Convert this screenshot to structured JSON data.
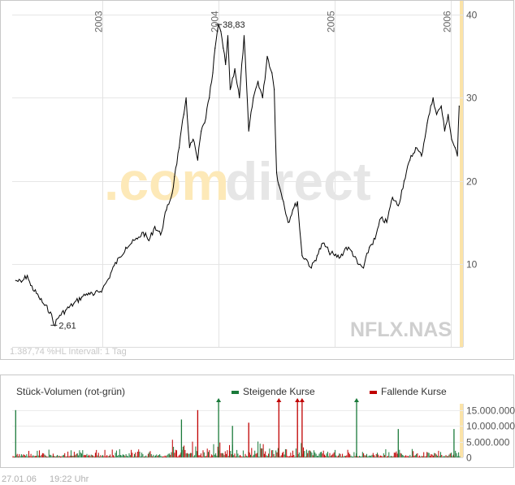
{
  "chart_data": [
    {
      "type": "line",
      "symbol": "NFLX.NAS",
      "watermark": [
        ".com",
        "direct"
      ],
      "x_year_labels": [
        "2003",
        "2004",
        "2005",
        "2006"
      ],
      "yticks": [
        10,
        20,
        30,
        40
      ],
      "ylim": [
        0,
        41
      ],
      "xlim": [
        2002.22,
        2006.08
      ],
      "x": [
        2002.25,
        2002.3,
        2002.35,
        2002.38,
        2002.45,
        2002.5,
        2002.55,
        2002.58,
        2002.63,
        2002.68,
        2002.75,
        2002.82,
        2002.88,
        2002.92,
        2003.0,
        2003.05,
        2003.1,
        2003.15,
        2003.2,
        2003.25,
        2003.3,
        2003.35,
        2003.4,
        2003.45,
        2003.5,
        2003.55,
        2003.6,
        2003.62,
        2003.66,
        2003.7,
        2003.72,
        2003.75,
        2003.78,
        2003.82,
        2003.85,
        2003.88,
        2003.92,
        2003.95,
        2003.97,
        2004.0,
        2004.02,
        2004.04,
        2004.06,
        2004.08,
        2004.1,
        2004.14,
        2004.18,
        2004.22,
        2004.26,
        2004.3,
        2004.34,
        2004.38,
        2004.42,
        2004.46,
        2004.48,
        2004.5,
        2004.52,
        2004.56,
        2004.6,
        2004.64,
        2004.68,
        2004.72,
        2004.76,
        2004.8,
        2004.85,
        2004.9,
        2004.95,
        2005.0,
        2005.05,
        2005.1,
        2005.15,
        2005.2,
        2005.25,
        2005.3,
        2005.35,
        2005.4,
        2005.45,
        2005.5,
        2005.55,
        2005.6,
        2005.65,
        2005.7,
        2005.75,
        2005.8,
        2005.85,
        2005.88,
        2005.92,
        2005.95,
        2005.98,
        2006.01,
        2006.04,
        2006.06,
        2006.075
      ],
      "y": [
        8.0,
        7.8,
        8.6,
        7.4,
        6.0,
        5.0,
        4.2,
        2.61,
        3.8,
        4.4,
        5.2,
        6.0,
        6.5,
        6.2,
        7.0,
        8.2,
        9.8,
        10.8,
        12.0,
        12.5,
        13.0,
        13.8,
        12.8,
        14.5,
        13.5,
        16.5,
        18.5,
        20.5,
        24.0,
        28.0,
        30.0,
        24.0,
        25.0,
        22.5,
        26.0,
        27.0,
        30.0,
        33.0,
        36.0,
        38.83,
        38.0,
        36.0,
        34.0,
        37.5,
        31.0,
        33.5,
        30.0,
        37.5,
        26.0,
        30.0,
        32.0,
        30.0,
        35.0,
        33.0,
        31.0,
        21.0,
        19.5,
        17.5,
        15.0,
        16.5,
        17.5,
        11.0,
        10.5,
        9.5,
        11.0,
        12.5,
        11.5,
        11.0,
        10.8,
        12.0,
        11.5,
        10.0,
        9.5,
        12.0,
        13.0,
        15.5,
        15.0,
        18.0,
        17.0,
        20.0,
        22.5,
        24.0,
        23.0,
        27.0,
        30.0,
        28.0,
        29.0,
        26.0,
        28.0,
        25.0,
        24.0,
        23.0,
        29.0
      ]
    },
    {
      "type": "bar",
      "title": "Stück-Volumen (rot-grün)",
      "legend": [
        "Steigende Kurse",
        "Fallende Kurse"
      ],
      "yticks": [
        "15.000.000",
        "10.000.000",
        "5.000.000",
        "0"
      ],
      "ylim": [
        0,
        17000000
      ],
      "peaks": [
        {
          "x": 2002.25,
          "value": 15000000,
          "color": "#1a7a3a"
        },
        {
          "x": 2003.68,
          "value": 12000000,
          "color": "#1a7a3a"
        },
        {
          "x": 2003.82,
          "value": 15000000,
          "color": "#c00000"
        },
        {
          "x": 2004.0,
          "value": 19000000,
          "color": "#1a7a3a"
        },
        {
          "x": 2004.12,
          "value": 10000000,
          "color": "#1a7a3a"
        },
        {
          "x": 2004.26,
          "value": 11000000,
          "color": "#c00000"
        },
        {
          "x": 2004.52,
          "value": 19000000,
          "color": "#c00000"
        },
        {
          "x": 2004.68,
          "value": 19000000,
          "color": "#c00000"
        },
        {
          "x": 2004.72,
          "value": 19000000,
          "color": "#c00000"
        },
        {
          "x": 2005.19,
          "value": 19000000,
          "color": "#1a7a3a"
        },
        {
          "x": 2005.55,
          "value": 9000000,
          "color": "#1a7a3a"
        },
        {
          "x": 2006.03,
          "value": 9000000,
          "color": "#1a7a3a"
        }
      ]
    }
  ],
  "annotations": {
    "high": "38,83",
    "low": "2,61"
  },
  "info_text": "1.387,74 %HL  Intervall: 1 Tag",
  "footer": {
    "date": "27.01.06",
    "time": "19:22 Uhr"
  },
  "colors": {
    "up": "#1a7a3a",
    "down": "#c00000",
    "highlight": "#fbe3a8",
    "line": "#000000"
  }
}
